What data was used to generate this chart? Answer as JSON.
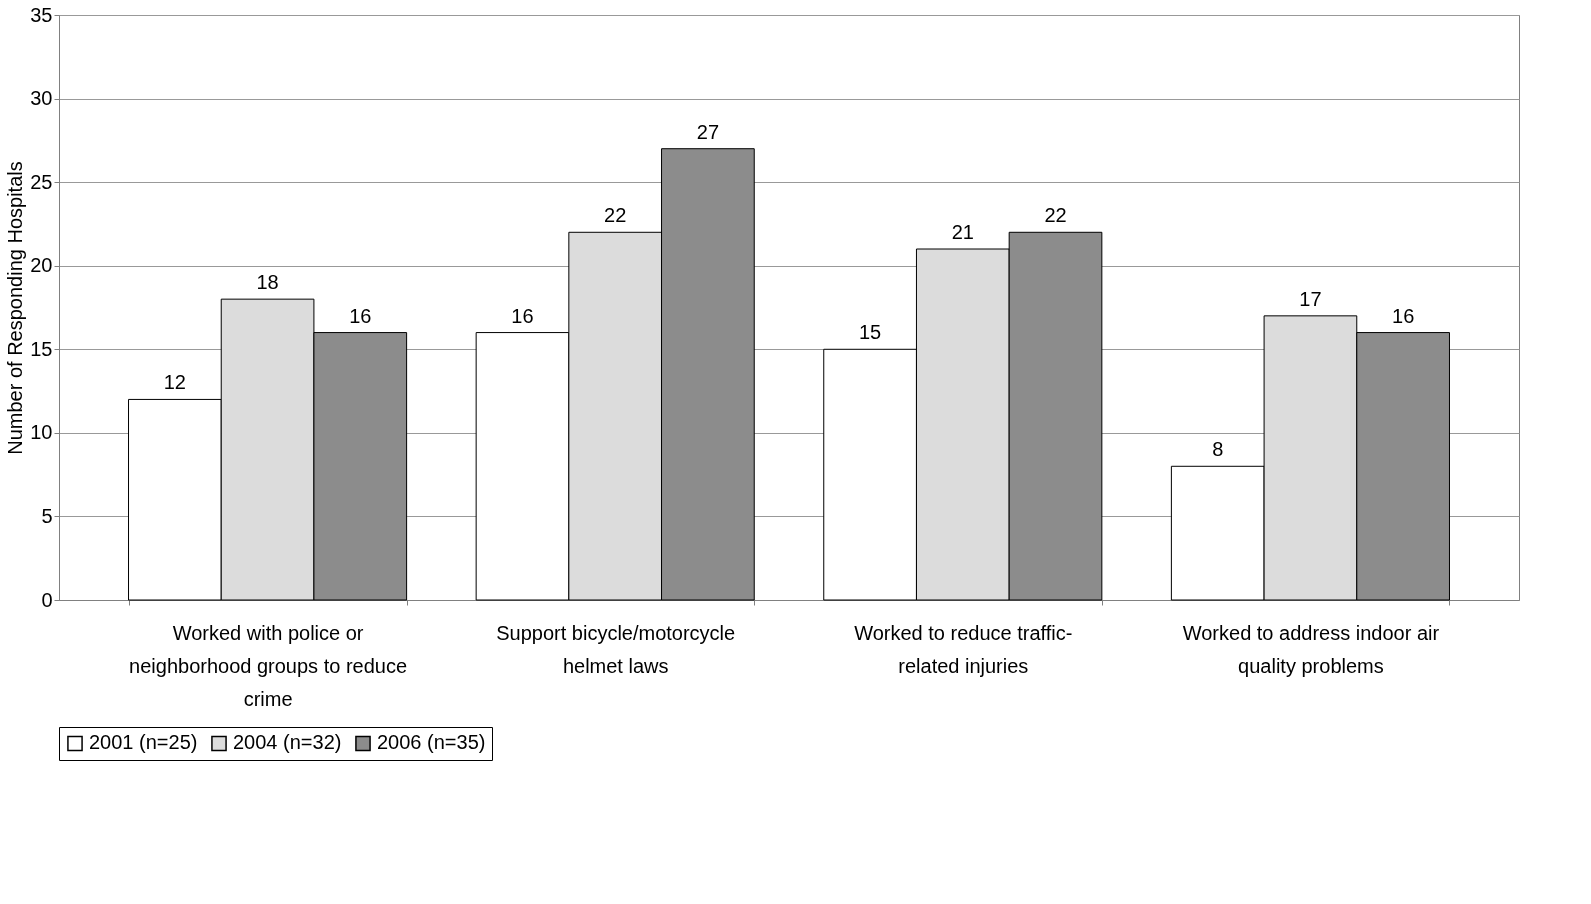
{
  "chart_data": {
    "type": "bar",
    "ylabel": "Number of Responding Hospitals",
    "categories": [
      "Worked with police or neighborhood groups to reduce crime",
      "Support bicycle/motorcycle helmet laws",
      "Worked to reduce traffic-related injuries",
      "Worked to address indoor air quality problems"
    ],
    "series": [
      {
        "name": "2001 (n=25)",
        "color": "#ffffff",
        "values": [
          12,
          16,
          15,
          8
        ]
      },
      {
        "name": "2004 (n=32)",
        "color": "#dcdcdc",
        "values": [
          18,
          22,
          21,
          17
        ]
      },
      {
        "name": "2006 (n=35)",
        "color": "#8c8c8c",
        "values": [
          16,
          27,
          22,
          16
        ]
      }
    ],
    "ylim": [
      0,
      35
    ],
    "yticks": [
      0,
      5,
      10,
      15,
      20,
      25,
      30,
      35
    ],
    "grid": "y",
    "legend": "bottom",
    "data_labels": true
  }
}
